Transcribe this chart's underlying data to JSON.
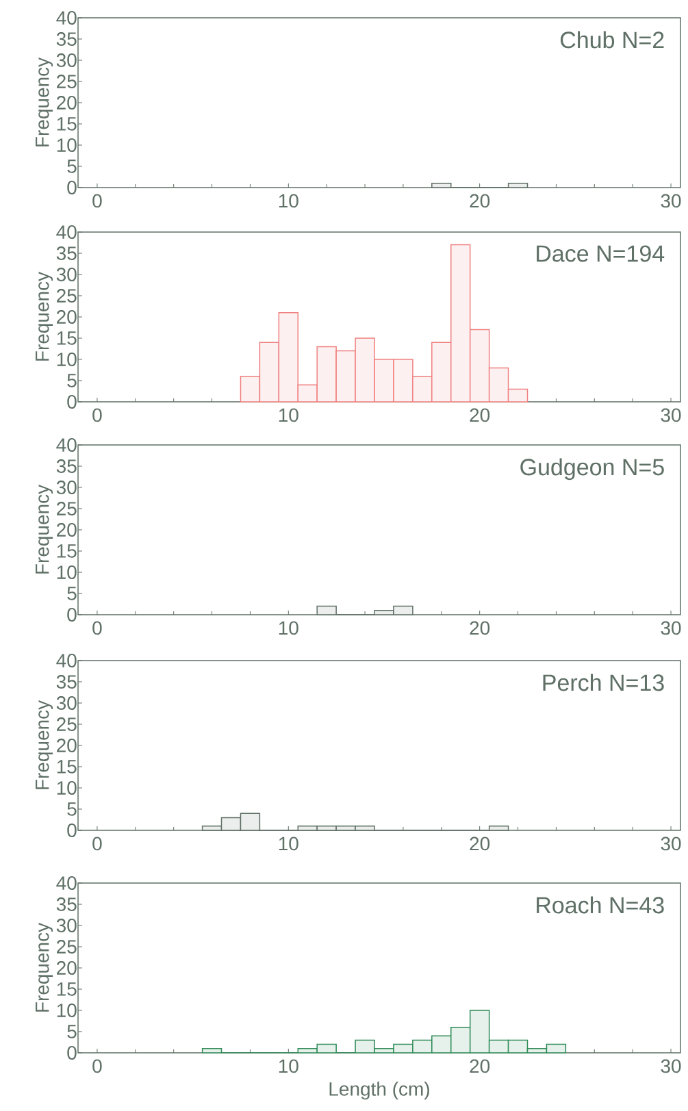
{
  "chart_data": [
    {
      "type": "histogram",
      "title": "Chub   N=2",
      "ylabel": "Frequency",
      "color": "#5f7066",
      "bins": [
        17.5,
        18.5,
        19.5,
        20.5,
        21.5,
        22.5
      ],
      "values": [
        1,
        0,
        0,
        0,
        1
      ],
      "xlim": [
        -1,
        30.5
      ],
      "ylim": [
        0,
        40
      ],
      "xticks": [
        0,
        10,
        20,
        30
      ],
      "yticks": [
        0,
        5,
        10,
        15,
        20,
        25,
        30,
        35,
        40
      ]
    },
    {
      "type": "histogram",
      "title": "Dace N=194",
      "ylabel": "Frequency",
      "color": "#f08080",
      "bins": [
        7.5,
        8.5,
        9.5,
        10.5,
        11.5,
        12.5,
        13.5,
        14.5,
        15.5,
        16.5,
        17.5,
        18.5,
        19.5,
        20.5,
        21.5,
        22.5
      ],
      "values": [
        6,
        14,
        21,
        4,
        13,
        12,
        15,
        10,
        10,
        6,
        14,
        37,
        17,
        8,
        3
      ],
      "xlim": [
        -1,
        30.5
      ],
      "ylim": [
        0,
        40
      ],
      "xticks": [
        0,
        10,
        20,
        30
      ],
      "yticks": [
        0,
        5,
        10,
        15,
        20,
        25,
        30,
        35,
        40
      ]
    },
    {
      "type": "histogram",
      "title": "Gudgeon N=5",
      "ylabel": "Frequency",
      "color": "#5f7066",
      "bins": [
        11.5,
        12.5,
        13.5,
        14.5,
        15.5,
        16.5
      ],
      "values": [
        2,
        0,
        0,
        1,
        2
      ],
      "xlim": [
        -1,
        30.5
      ],
      "ylim": [
        0,
        40
      ],
      "xticks": [
        0,
        10,
        20,
        30
      ],
      "yticks": [
        0,
        5,
        10,
        15,
        20,
        25,
        30,
        35,
        40
      ]
    },
    {
      "type": "histogram",
      "title": "Perch   N=13",
      "ylabel": "Frequency",
      "color": "#5f7066",
      "bins": [
        5.5,
        6.5,
        7.5,
        8.5,
        9.5,
        10.5,
        11.5,
        12.5,
        13.5,
        14.5,
        15.5,
        16.5,
        17.5,
        18.5,
        19.5,
        20.5,
        21.5
      ],
      "values": [
        1,
        3,
        4,
        0,
        0,
        1,
        1,
        1,
        1,
        0,
        0,
        0,
        0,
        0,
        0,
        1
      ],
      "xlim": [
        -1,
        30.5
      ],
      "ylim": [
        0,
        40
      ],
      "xticks": [
        0,
        10,
        20,
        30
      ],
      "yticks": [
        0,
        5,
        10,
        15,
        20,
        25,
        30,
        35,
        40
      ]
    },
    {
      "type": "histogram",
      "title": "Roach   N=43",
      "ylabel": "Frequency",
      "xlabel": "Length (cm)",
      "color": "#2e8b57",
      "bins": [
        5.5,
        6.5,
        7.5,
        8.5,
        9.5,
        10.5,
        11.5,
        12.5,
        13.5,
        14.5,
        15.5,
        16.5,
        17.5,
        18.5,
        19.5,
        20.5,
        21.5,
        22.5,
        23.5,
        24.5
      ],
      "values": [
        1,
        0,
        0,
        0,
        0,
        1,
        2,
        0,
        3,
        1,
        2,
        3,
        4,
        6,
        10,
        3,
        3,
        1,
        2
      ],
      "xlim": [
        -1,
        30.5
      ],
      "ylim": [
        0,
        40
      ],
      "xticks": [
        0,
        10,
        20,
        30
      ],
      "yticks": [
        0,
        5,
        10,
        15,
        20,
        25,
        30,
        35,
        40
      ]
    }
  ]
}
